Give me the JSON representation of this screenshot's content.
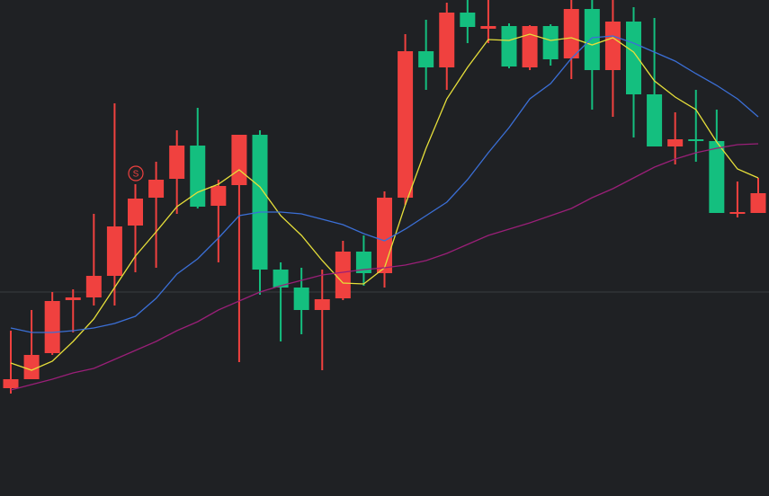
{
  "chart_data": {
    "type": "candlestick",
    "annotation": "S",
    "ylim": [
      0,
      552
    ],
    "up_color": "#f0413f",
    "down_color": "#14bf7f",
    "reference_line": 227,
    "reference_color": "#3a3d41",
    "candles": [
      {
        "open": 120,
        "high": 184,
        "low": 114,
        "close": 130
      },
      {
        "open": 130,
        "high": 207,
        "low": 130,
        "close": 157
      },
      {
        "open": 159,
        "high": 227,
        "low": 157,
        "close": 217
      },
      {
        "open": 218,
        "high": 230,
        "low": 182,
        "close": 221
      },
      {
        "open": 221,
        "high": 314,
        "low": 212,
        "close": 245
      },
      {
        "open": 245,
        "high": 437,
        "low": 212,
        "close": 300
      },
      {
        "open": 301,
        "high": 347,
        "low": 249,
        "close": 331
      },
      {
        "open": 332,
        "high": 372,
        "low": 254,
        "close": 352
      },
      {
        "open": 353,
        "high": 407,
        "low": 314,
        "close": 390
      },
      {
        "open": 390,
        "high": 432,
        "low": 320,
        "close": 322
      },
      {
        "open": 323,
        "high": 352,
        "low": 260,
        "close": 345
      },
      {
        "open": 346,
        "high": 402,
        "low": 149,
        "close": 402
      },
      {
        "open": 402,
        "high": 407,
        "low": 224,
        "close": 252
      },
      {
        "open": 252,
        "high": 260,
        "low": 172,
        "close": 232
      },
      {
        "open": 232,
        "high": 254,
        "low": 180,
        "close": 207
      },
      {
        "open": 207,
        "high": 252,
        "low": 140,
        "close": 219
      },
      {
        "open": 220,
        "high": 284,
        "low": 218,
        "close": 272
      },
      {
        "open": 272,
        "high": 290,
        "low": 234,
        "close": 248
      },
      {
        "open": 248,
        "high": 339,
        "low": 232,
        "close": 332
      },
      {
        "open": 332,
        "high": 514,
        "low": 324,
        "close": 495
      },
      {
        "open": 495,
        "high": 530,
        "low": 452,
        "close": 477
      },
      {
        "open": 477,
        "high": 549,
        "low": 452,
        "close": 538
      },
      {
        "open": 538,
        "high": 552,
        "low": 504,
        "close": 522
      },
      {
        "open": 520,
        "high": 552,
        "low": 504,
        "close": 523
      },
      {
        "open": 523,
        "high": 526,
        "low": 476,
        "close": 478
      },
      {
        "open": 477,
        "high": 524,
        "low": 474,
        "close": 523
      },
      {
        "open": 523,
        "high": 525,
        "low": 479,
        "close": 486
      },
      {
        "open": 487,
        "high": 552,
        "low": 464,
        "close": 542
      },
      {
        "open": 542,
        "high": 552,
        "low": 430,
        "close": 474
      },
      {
        "open": 474,
        "high": 552,
        "low": 422,
        "close": 528
      },
      {
        "open": 528,
        "high": 544,
        "low": 399,
        "close": 447
      },
      {
        "open": 447,
        "high": 532,
        "low": 389,
        "close": 389
      },
      {
        "open": 389,
        "high": 427,
        "low": 369,
        "close": 397
      },
      {
        "open": 397,
        "high": 452,
        "low": 372,
        "close": 395
      },
      {
        "open": 395,
        "high": 430,
        "low": 315,
        "close": 315
      },
      {
        "open": 314,
        "high": 350,
        "low": 310,
        "close": 316
      },
      {
        "open": 315,
        "high": 354,
        "low": 315,
        "close": 337
      }
    ],
    "series": [
      {
        "color": "#e6df3a",
        "values": [
          148,
          140,
          150,
          172,
          197,
          232,
          267,
          294,
          322,
          338,
          347,
          363,
          344,
          312,
          290,
          262,
          237,
          236,
          254,
          324,
          387,
          442,
          477,
          508,
          507,
          514,
          507,
          510,
          502,
          510,
          494,
          462,
          444,
          430,
          394,
          364,
          354
        ]
      },
      {
        "color": "#3b6fd6",
        "values": [
          187,
          182,
          182,
          184,
          187,
          192,
          200,
          220,
          247,
          264,
          287,
          312,
          316,
          316,
          314,
          308,
          302,
          292,
          284,
          297,
          312,
          327,
          352,
          382,
          410,
          442,
          459,
          487,
          510,
          512,
          504,
          494,
          484,
          470,
          457,
          442,
          422
        ]
      },
      {
        "color": "#9a1f78",
        "values": [
          118,
          124,
          130,
          137,
          142,
          152,
          162,
          172,
          184,
          194,
          207,
          217,
          227,
          234,
          240,
          246,
          249,
          252,
          254,
          257,
          262,
          270,
          280,
          290,
          297,
          304,
          312,
          320,
          332,
          342,
          354,
          366,
          375,
          382,
          387,
          391,
          392
        ]
      }
    ]
  }
}
